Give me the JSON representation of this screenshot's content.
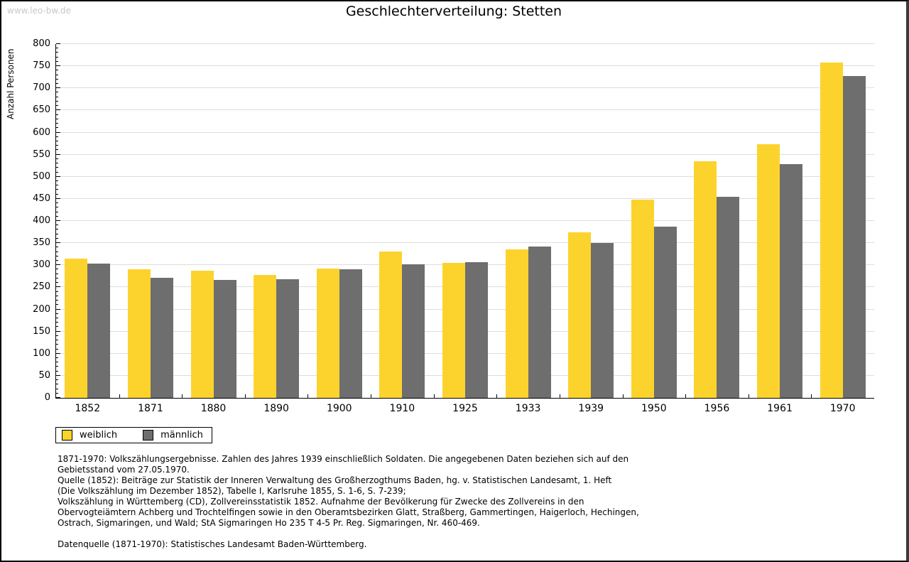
{
  "watermark": "www.leo-bw.de",
  "title": "Geschlechterverteilung: Stetten",
  "chart_data": {
    "type": "bar",
    "title": "Geschlechterverteilung: Stetten",
    "ylabel": "Anzahl Personen",
    "xlabel": "",
    "ylim": [
      0,
      800
    ],
    "ytick_step": 50,
    "ytick_minor_step": 10,
    "grid": true,
    "legend_position": "bottom-left",
    "categories": [
      "1852",
      "1871",
      "1880",
      "1890",
      "1900",
      "1910",
      "1925",
      "1933",
      "1939",
      "1950",
      "1956",
      "1961",
      "1970"
    ],
    "series": [
      {
        "name": "weiblich",
        "color": "#FCD32D",
        "values": [
          315,
          290,
          288,
          278,
          292,
          331,
          305,
          335,
          374,
          448,
          535,
          573,
          758
        ]
      },
      {
        "name": "männlich",
        "color": "#6E6E6E",
        "values": [
          303,
          271,
          267,
          268,
          290,
          302,
          307,
          342,
          351,
          387,
          455,
          529,
          727
        ]
      }
    ]
  },
  "legend": {
    "items": [
      {
        "label": "weiblich",
        "color": "#FCD32D"
      },
      {
        "label": "männlich",
        "color": "#6E6E6E"
      }
    ]
  },
  "footnote": {
    "lines": [
      "1871-1970: Volkszählungsergebnisse. Zahlen des Jahres 1939 einschließlich Soldaten. Die angegebenen Daten beziehen sich auf den",
      "Gebietsstand vom 27.05.1970.",
      "Quelle (1852): Beiträge zur Statistik der Inneren Verwaltung des Großherzogthums Baden, hg. v. Statistischen Landesamt, 1. Heft",
      "(Die Volkszählung im Dezember 1852), Tabelle I, Karlsruhe 1855, S. 1-6, S. 7-239;",
      "Volkszählung in Württemberg (CD), Zollvereinsstatistik 1852. Aufnahme der Bevölkerung für Zwecke des Zollvereins in den",
      "Obervogteiämtern Achberg und Trochtelfingen sowie in den Oberamtsbezirken Glatt, Straßberg, Gammertingen, Haigerloch, Hechingen,",
      "Ostrach, Sigmaringen, und Wald; StA Sigmaringen Ho 235 T 4-5 Pr. Reg. Sigmaringen, Nr. 460-469."
    ],
    "source": "Datenquelle (1871-1970): Statistisches Landesamt Baden-Württemberg."
  },
  "colors": {
    "grid": "#DDDDDD",
    "axis": "#000000",
    "watermark": "#C8C8C8"
  }
}
